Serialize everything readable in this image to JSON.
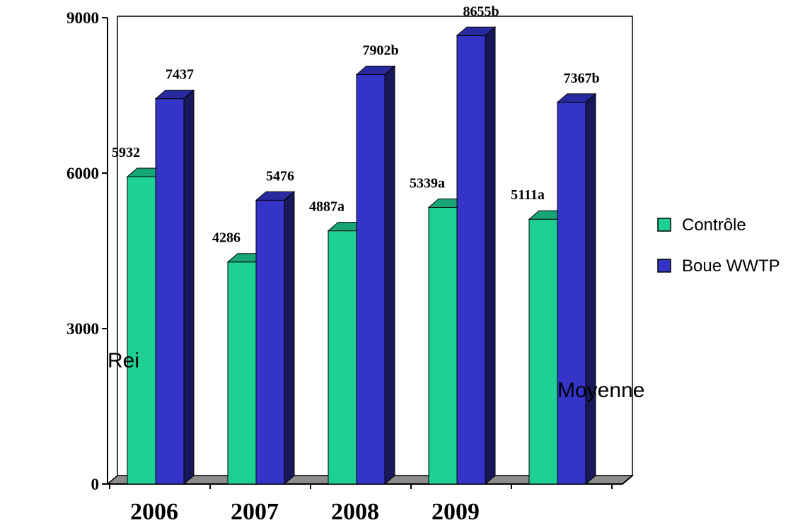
{
  "chart_data": {
    "type": "bar",
    "categories": [
      "2006",
      "2007",
      "2008",
      "2009",
      ""
    ],
    "series": [
      {
        "name": "Contrôle",
        "values": [
          5932,
          4286,
          4887,
          5339,
          5111
        ],
        "labels": [
          "5932",
          "4286",
          "4887a",
          "5339a",
          "5111a"
        ],
        "color": "#1ecf96"
      },
      {
        "name": "Boue WWTP",
        "values": [
          7437,
          5476,
          7902,
          8655,
          7367
        ],
        "labels": [
          "7437",
          "5476",
          "7902b",
          "8655b",
          "7367b"
        ],
        "color": "#3434c8"
      }
    ],
    "yticks": [
      "0",
      "3000",
      "6000",
      "9000"
    ],
    "ylim": [
      0,
      9000
    ],
    "legend_position": "right",
    "overlay_texts": {
      "left": "Rei",
      "right": "Moyenne"
    },
    "style": "3d-clustered-column"
  }
}
